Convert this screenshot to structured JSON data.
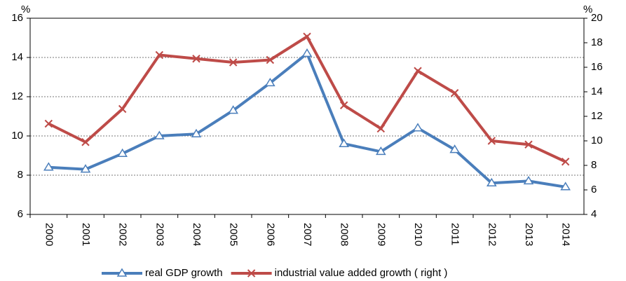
{
  "chart_data": {
    "type": "line",
    "y_unit": "%",
    "y2_unit": "%",
    "categories": [
      "2000",
      "2001",
      "2002",
      "2003",
      "2004",
      "2005",
      "2006",
      "2007",
      "2008",
      "2009",
      "2010",
      "2011",
      "2012",
      "2013",
      "2014"
    ],
    "series": [
      {
        "name": "real GDP growth",
        "color": "#4a7ebb",
        "marker": "triangle",
        "values": [
          8.4,
          8.3,
          9.1,
          10.0,
          10.1,
          11.3,
          12.7,
          14.2,
          9.6,
          9.2,
          10.4,
          9.3,
          7.6,
          7.7,
          7.4
        ]
      },
      {
        "name": "industrial value added growth ( right )",
        "color": "#be4b48",
        "marker": "x",
        "axis": "y2",
        "values": [
          11.4,
          9.9,
          12.6,
          17.0,
          16.7,
          16.4,
          16.6,
          18.5,
          12.9,
          11.0,
          15.7,
          13.9,
          10.0,
          9.7,
          8.3
        ]
      }
    ],
    "ylim": [
      6,
      16
    ],
    "yticks": [
      6,
      8,
      10,
      12,
      14,
      16
    ],
    "y2lim": [
      4,
      20
    ],
    "y2ticks": [
      4,
      6,
      8,
      10,
      12,
      14,
      16,
      18,
      20
    ],
    "grid": true,
    "legend": "bottom"
  }
}
